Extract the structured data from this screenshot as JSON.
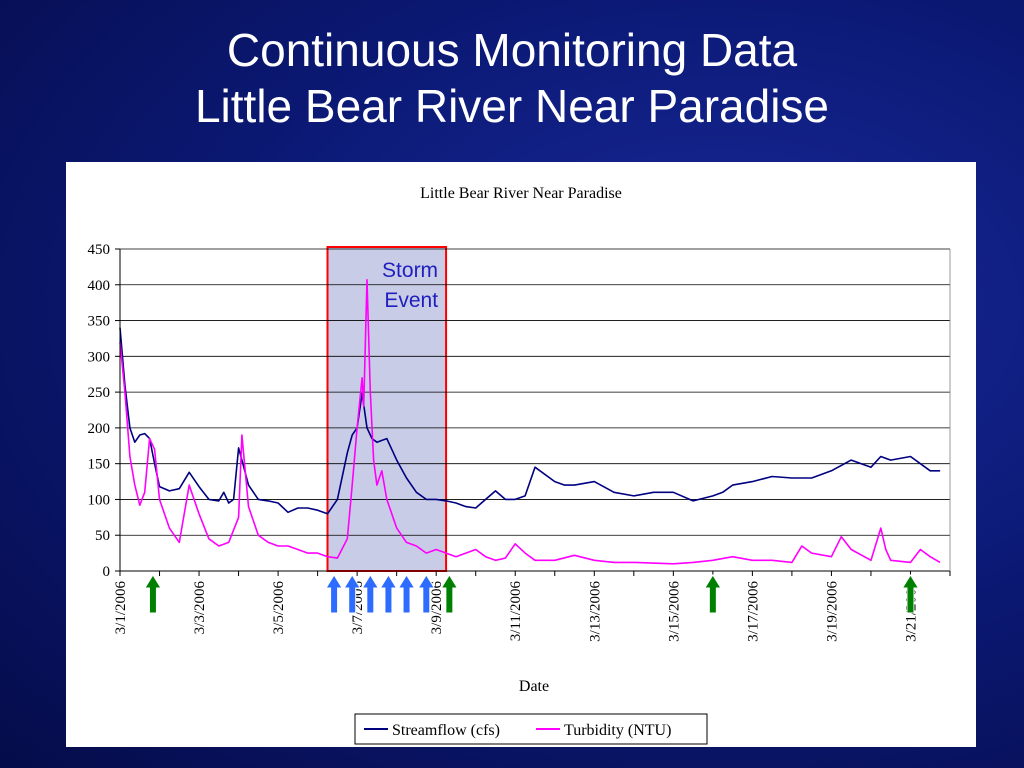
{
  "slide": {
    "title_line1": "Continuous Monitoring Data",
    "title_line2": "Little Bear River Near Paradise"
  },
  "colors": {
    "background": "#0c1a78",
    "streamflow": "#000080",
    "turbidity": "#ff00ff",
    "storm_fill": "#c8cce6",
    "storm_border": "#ff0000",
    "storm_text": "#1f1fbf",
    "green_arrow": "#008000",
    "blue_arrow": "#2e6bff"
  },
  "chart_data": {
    "type": "line",
    "title": "Little Bear River Near Paradise",
    "xlabel": "Date",
    "ylabel": "",
    "ylim": [
      0,
      450
    ],
    "yticks": [
      0,
      50,
      100,
      150,
      200,
      250,
      300,
      350,
      400,
      450
    ],
    "xlim": [
      "3/1/2006",
      "3/22/2006"
    ],
    "x_tick_labels": [
      "3/1/2006",
      "3/3/2006",
      "3/5/2006",
      "3/7/2006",
      "3/9/2006",
      "3/11/2006",
      "3/13/2006",
      "3/15/2006",
      "3/17/2006",
      "3/19/2006",
      "3/21/2006"
    ],
    "grid": "horizontal",
    "legend_position": "bottom",
    "annotation": {
      "text_line1": "Storm",
      "text_line2": "Event",
      "x_start": "3/6/2006 06:00",
      "x_end": "3/9/2006 06:00"
    },
    "sample_markers": {
      "routine": [
        "3/1/2006 20:00",
        "3/9/2006 08:00",
        "3/16/2006 00:00",
        "3/21/2006 00:00"
      ],
      "storm": [
        "3/6/2006 10:00",
        "3/6/2006 21:00",
        "3/7/2006 08:00",
        "3/7/2006 19:00",
        "3/8/2006 06:00",
        "3/8/2006 18:00"
      ]
    },
    "series": [
      {
        "name": "Streamflow (cfs)",
        "x": [
          "3/1/2006 00:00",
          "3/1/2006 03:00",
          "3/1/2006 06:00",
          "3/1/2006 09:00",
          "3/1/2006 12:00",
          "3/1/2006 15:00",
          "3/1/2006 18:00",
          "3/1/2006 21:00",
          "3/2/2006 00:00",
          "3/2/2006 06:00",
          "3/2/2006 12:00",
          "3/2/2006 18:00",
          "3/3/2006 00:00",
          "3/3/2006 06:00",
          "3/3/2006 12:00",
          "3/3/2006 15:00",
          "3/3/2006 18:00",
          "3/3/2006 21:00",
          "3/4/2006 00:00",
          "3/4/2006 02:00",
          "3/4/2006 06:00",
          "3/4/2006 12:00",
          "3/4/2006 18:00",
          "3/5/2006 00:00",
          "3/5/2006 06:00",
          "3/5/2006 12:00",
          "3/5/2006 18:00",
          "3/6/2006 00:00",
          "3/6/2006 06:00",
          "3/6/2006 12:00",
          "3/6/2006 18:00",
          "3/6/2006 21:00",
          "3/7/2006 00:00",
          "3/7/2006 03:00",
          "3/7/2006 06:00",
          "3/7/2006 09:00",
          "3/7/2006 12:00",
          "3/7/2006 18:00",
          "3/8/2006 00:00",
          "3/8/2006 06:00",
          "3/8/2006 12:00",
          "3/8/2006 18:00",
          "3/9/2006 00:00",
          "3/9/2006 06:00",
          "3/9/2006 12:00",
          "3/9/2006 18:00",
          "3/10/2006 00:00",
          "3/10/2006 06:00",
          "3/10/2006 12:00",
          "3/10/2006 18:00",
          "3/11/2006 00:00",
          "3/11/2006 06:00",
          "3/11/2006 12:00",
          "3/12/2006 00:00",
          "3/12/2006 06:00",
          "3/12/2006 12:00",
          "3/13/2006 00:00",
          "3/13/2006 12:00",
          "3/14/2006 00:00",
          "3/14/2006 12:00",
          "3/15/2006 00:00",
          "3/15/2006 12:00",
          "3/16/2006 00:00",
          "3/16/2006 06:00",
          "3/16/2006 12:00",
          "3/17/2006 00:00",
          "3/17/2006 12:00",
          "3/18/2006 00:00",
          "3/18/2006 12:00",
          "3/19/2006 00:00",
          "3/19/2006 12:00",
          "3/20/2006 00:00",
          "3/20/2006 06:00",
          "3/20/2006 12:00",
          "3/21/2006 00:00",
          "3/21/2006 06:00",
          "3/21/2006 12:00",
          "3/21/2006 18:00"
        ],
        "values": [
          340,
          260,
          200,
          180,
          190,
          192,
          185,
          150,
          118,
          112,
          115,
          138,
          118,
          100,
          98,
          110,
          95,
          100,
          172,
          155,
          120,
          100,
          98,
          95,
          82,
          88,
          88,
          85,
          80,
          100,
          165,
          190,
          200,
          248,
          200,
          185,
          180,
          185,
          155,
          130,
          110,
          100,
          100,
          98,
          95,
          90,
          88,
          100,
          112,
          100,
          100,
          105,
          145,
          125,
          120,
          120,
          125,
          110,
          105,
          110,
          110,
          98,
          105,
          110,
          120,
          125,
          132,
          130,
          130,
          140,
          155,
          145,
          160,
          155,
          160,
          150,
          140,
          140
        ]
      },
      {
        "name": "Turbidity (NTU)",
        "x": [
          "3/1/2006 00:00",
          "3/1/2006 03:00",
          "3/1/2006 06:00",
          "3/1/2006 09:00",
          "3/1/2006 12:00",
          "3/1/2006 15:00",
          "3/1/2006 18:00",
          "3/1/2006 21:00",
          "3/2/2006 00:00",
          "3/2/2006 06:00",
          "3/2/2006 12:00",
          "3/2/2006 18:00",
          "3/3/2006 00:00",
          "3/3/2006 06:00",
          "3/3/2006 12:00",
          "3/3/2006 18:00",
          "3/4/2006 00:00",
          "3/4/2006 02:00",
          "3/4/2006 06:00",
          "3/4/2006 12:00",
          "3/4/2006 18:00",
          "3/5/2006 00:00",
          "3/5/2006 06:00",
          "3/5/2006 12:00",
          "3/5/2006 18:00",
          "3/6/2006 00:00",
          "3/6/2006 06:00",
          "3/6/2006 12:00",
          "3/6/2006 18:00",
          "3/6/2006 21:00",
          "3/7/2006 00:00",
          "3/7/2006 03:00",
          "3/7/2006 04:00",
          "3/7/2006 06:00",
          "3/7/2006 08:00",
          "3/7/2006 10:00",
          "3/7/2006 12:00",
          "3/7/2006 15:00",
          "3/7/2006 18:00",
          "3/8/2006 00:00",
          "3/8/2006 06:00",
          "3/8/2006 12:00",
          "3/8/2006 18:00",
          "3/9/2006 00:00",
          "3/9/2006 06:00",
          "3/9/2006 12:00",
          "3/9/2006 18:00",
          "3/10/2006 00:00",
          "3/10/2006 06:00",
          "3/10/2006 12:00",
          "3/10/2006 18:00",
          "3/11/2006 00:00",
          "3/11/2006 06:00",
          "3/11/2006 12:00",
          "3/12/2006 00:00",
          "3/12/2006 12:00",
          "3/13/2006 00:00",
          "3/13/2006 12:00",
          "3/14/2006 00:00",
          "3/15/2006 00:00",
          "3/15/2006 12:00",
          "3/16/2006 00:00",
          "3/16/2006 12:00",
          "3/17/2006 00:00",
          "3/17/2006 12:00",
          "3/18/2006 00:00",
          "3/18/2006 06:00",
          "3/18/2006 12:00",
          "3/19/2006 00:00",
          "3/19/2006 06:00",
          "3/19/2006 12:00",
          "3/20/2006 00:00",
          "3/20/2006 06:00",
          "3/20/2006 09:00",
          "3/20/2006 12:00",
          "3/21/2006 00:00",
          "3/21/2006 06:00",
          "3/21/2006 12:00",
          "3/21/2006 18:00"
        ],
        "values": [
          320,
          250,
          160,
          120,
          92,
          110,
          185,
          170,
          100,
          60,
          40,
          120,
          80,
          45,
          35,
          40,
          75,
          190,
          90,
          50,
          40,
          35,
          35,
          30,
          25,
          25,
          20,
          18,
          45,
          120,
          200,
          270,
          230,
          407,
          250,
          155,
          120,
          140,
          100,
          60,
          40,
          35,
          25,
          30,
          25,
          20,
          25,
          30,
          20,
          15,
          18,
          38,
          25,
          15,
          15,
          22,
          15,
          12,
          12,
          10,
          12,
          15,
          20,
          15,
          15,
          12,
          35,
          25,
          20,
          48,
          30,
          15,
          60,
          30,
          15,
          12,
          30,
          20,
          12
        ]
      }
    ]
  }
}
